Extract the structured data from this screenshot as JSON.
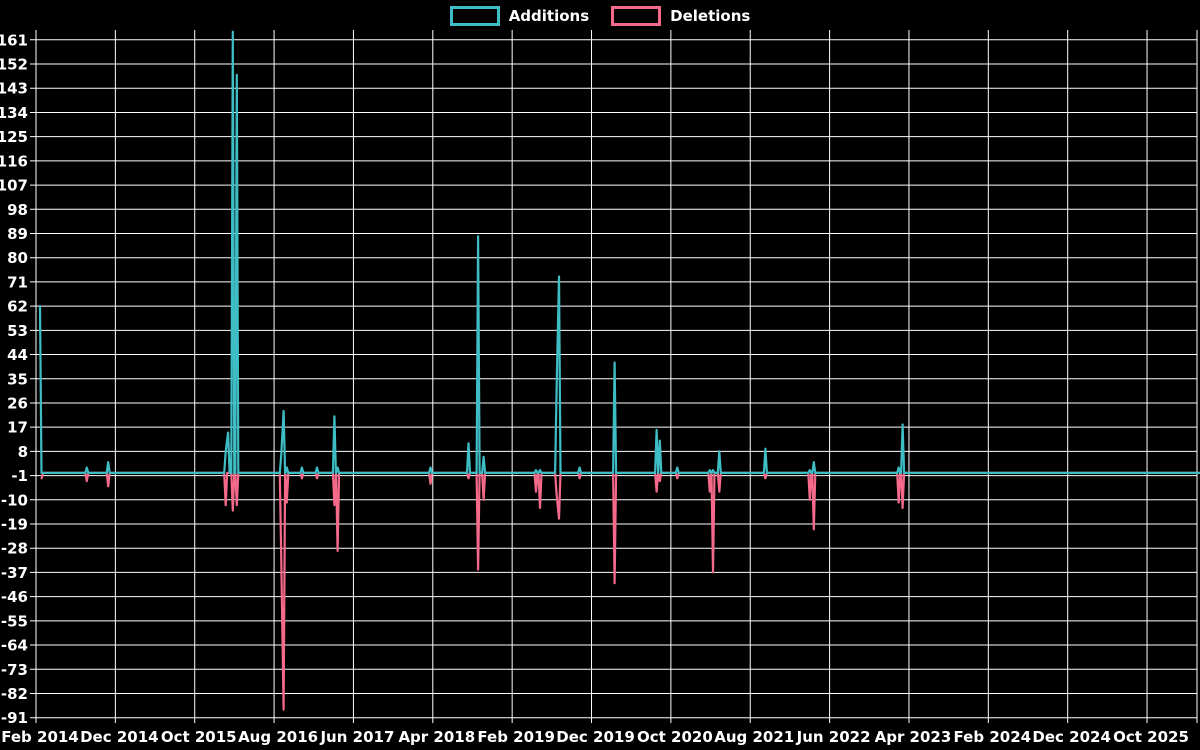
{
  "legend": {
    "additions_label": "Additions",
    "deletions_label": "Deletions"
  },
  "colors": {
    "background": "#000000",
    "grid": "#ffffff",
    "text": "#ffffff",
    "additions": "#3fbdc5",
    "deletions": "#f56a8a"
  },
  "chart_data": {
    "type": "line",
    "title": "",
    "xlabel": "",
    "ylabel": "",
    "grid": true,
    "legend_position": "top-center",
    "x_unit": "months since 2014-02 (Feb 2014 = 0)",
    "x_range": [
      0,
      146
    ],
    "y_axis": {
      "min": -91,
      "max": 161,
      "step": 9,
      "ticks": [
        161,
        152,
        143,
        134,
        125,
        116,
        107,
        98,
        89,
        80,
        71,
        62,
        53,
        44,
        35,
        26,
        17,
        8,
        -1,
        -10,
        -19,
        -28,
        -37,
        -46,
        -55,
        -64,
        -73,
        -82,
        -91
      ]
    },
    "x_axis": {
      "tick_labels": [
        "Feb 2014",
        "Dec 2014",
        "Oct 2015",
        "Aug 2016",
        "Jun 2017",
        "Apr 2018",
        "Feb 2019",
        "Dec 2019",
        "Oct 2020",
        "Aug 2021",
        "Jun 2022",
        "Apr 2023",
        "Feb 2024",
        "Dec 2024",
        "Oct 2025"
      ],
      "tick_month_offsets": [
        0,
        10,
        20,
        30,
        40,
        50,
        60,
        70,
        80,
        90,
        100,
        110,
        120,
        130,
        140
      ]
    },
    "series": [
      {
        "name": "Deletions",
        "color": "#f56a8a",
        "baseline": 0,
        "points": [
          [
            0.2,
            -2
          ],
          [
            5.9,
            -3
          ],
          [
            8.6,
            -5
          ],
          [
            23.4,
            -12
          ],
          [
            24.3,
            -14
          ],
          [
            24.8,
            -12
          ],
          [
            30.4,
            -33
          ],
          [
            30.7,
            -88
          ],
          [
            31.1,
            -11
          ],
          [
            33,
            -2
          ],
          [
            34.9,
            -2
          ],
          [
            37.1,
            -12
          ],
          [
            37.5,
            -29
          ],
          [
            49.2,
            -4
          ],
          [
            54,
            -2
          ],
          [
            55.2,
            -36
          ],
          [
            55.9,
            -10
          ],
          [
            62.5,
            -7
          ],
          [
            63,
            -13
          ],
          [
            65.1,
            -8
          ],
          [
            65.4,
            -17
          ],
          [
            68,
            -2
          ],
          [
            72.4,
            -41
          ],
          [
            77.7,
            -7
          ],
          [
            78.1,
            -3
          ],
          [
            80.3,
            -2
          ],
          [
            84.4,
            -7
          ],
          [
            84.8,
            -37
          ],
          [
            85.6,
            -7
          ],
          [
            91.4,
            -2
          ],
          [
            97,
            -10
          ],
          [
            97.5,
            -21
          ],
          [
            108.2,
            -11
          ],
          [
            108.7,
            -13
          ]
        ]
      },
      {
        "name": "Additions",
        "color": "#3fbdc5",
        "baseline": 0,
        "points": [
          [
            0,
            62
          ],
          [
            5.9,
            2
          ],
          [
            8.6,
            4
          ],
          [
            23.4,
            8
          ],
          [
            23.7,
            15
          ],
          [
            24.3,
            164
          ],
          [
            24.8,
            148
          ],
          [
            30.4,
            7
          ],
          [
            30.7,
            23
          ],
          [
            31.1,
            2
          ],
          [
            33,
            2
          ],
          [
            34.9,
            2
          ],
          [
            37.1,
            21
          ],
          [
            37.5,
            2
          ],
          [
            49.2,
            2
          ],
          [
            54,
            11
          ],
          [
            55.2,
            88
          ],
          [
            55.9,
            6
          ],
          [
            62.5,
            1
          ],
          [
            63,
            1
          ],
          [
            65.1,
            31
          ],
          [
            65.4,
            73
          ],
          [
            68,
            2
          ],
          [
            72.4,
            41
          ],
          [
            77.7,
            16
          ],
          [
            78.1,
            12
          ],
          [
            80.3,
            2
          ],
          [
            84.4,
            1
          ],
          [
            84.8,
            1
          ],
          [
            85.6,
            8
          ],
          [
            91.4,
            9
          ],
          [
            97,
            1
          ],
          [
            97.5,
            4
          ],
          [
            108.2,
            2
          ],
          [
            108.7,
            18
          ]
        ]
      }
    ]
  }
}
